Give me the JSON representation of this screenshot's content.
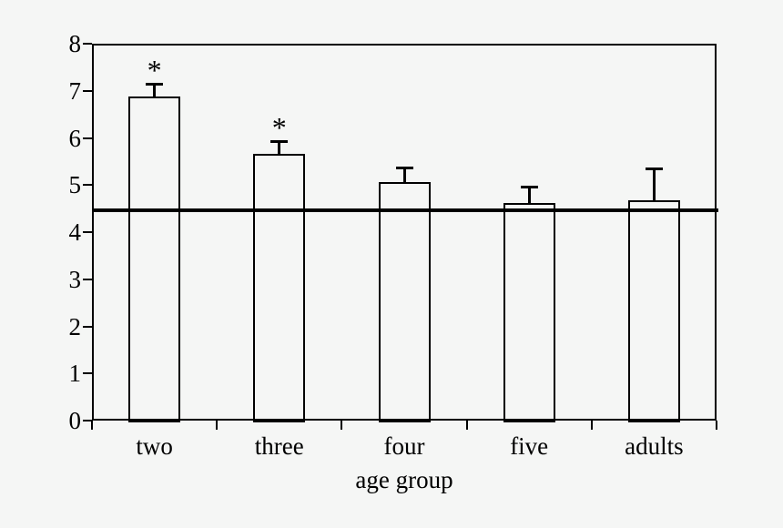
{
  "figure": {
    "background_color": "#f5f6f5",
    "line_color": "#000000"
  },
  "chart_data": {
    "type": "bar",
    "title": "",
    "xlabel": "age group",
    "ylabel": "",
    "categories": [
      "two",
      "three",
      "four",
      "five",
      "adults"
    ],
    "values": [
      6.88,
      5.67,
      5.07,
      4.62,
      4.68
    ],
    "error_upper": [
      0.26,
      0.25,
      0.29,
      0.32,
      0.66
    ],
    "significance_markers": [
      "*",
      "*",
      "",
      "",
      ""
    ],
    "reference_line_y": 4.46,
    "ylim": [
      0,
      8
    ],
    "yticks": [
      0,
      1,
      2,
      3,
      4,
      5,
      6,
      7,
      8
    ],
    "grid": false,
    "legend": false,
    "bar_fill": "#f5f6f5",
    "bar_border": "#000000"
  }
}
